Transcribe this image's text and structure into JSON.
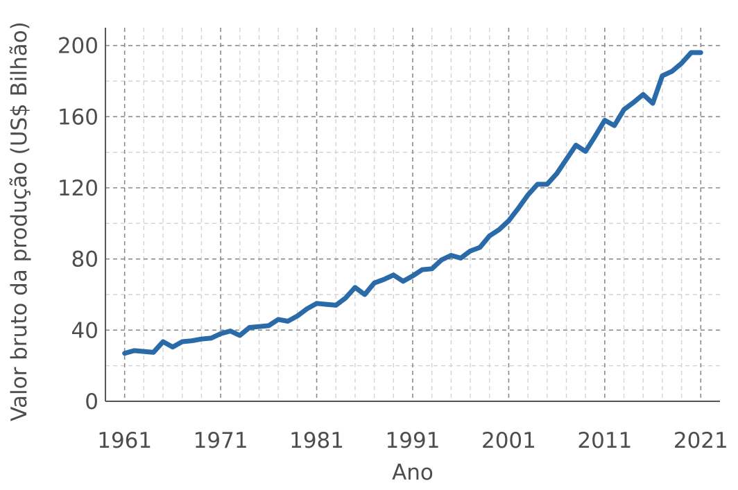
{
  "chart_data": {
    "type": "line",
    "xlabel": "Ano",
    "ylabel": "Valor bruto da produção (US$ Bilhão)",
    "xlim": [
      1959,
      2023
    ],
    "ylim": [
      0,
      210
    ],
    "x_ticks": [
      1961,
      1971,
      1981,
      1991,
      2001,
      2011,
      2021
    ],
    "y_ticks": [
      0,
      40,
      80,
      120,
      160,
      200
    ],
    "grid": true,
    "legend": "none",
    "series": [
      {
        "color": "#2a6aa8",
        "x": [
          1961,
          1962,
          1963,
          1964,
          1965,
          1966,
          1967,
          1968,
          1969,
          1970,
          1971,
          1972,
          1973,
          1974,
          1975,
          1976,
          1977,
          1978,
          1979,
          1980,
          1981,
          1982,
          1983,
          1984,
          1985,
          1986,
          1987,
          1988,
          1989,
          1990,
          1991,
          1992,
          1993,
          1994,
          1995,
          1996,
          1997,
          1998,
          1999,
          2000,
          2001,
          2002,
          2003,
          2004,
          2005,
          2006,
          2007,
          2008,
          2009,
          2010,
          2011,
          2012,
          2013,
          2014,
          2015,
          2016,
          2017,
          2018,
          2019,
          2020,
          2021
        ],
        "values": [
          27,
          28.5,
          28,
          27.5,
          33.5,
          30.5,
          33.5,
          34,
          35,
          35.5,
          38,
          39.5,
          37,
          41.5,
          42,
          42.5,
          46,
          45,
          48,
          52,
          55,
          54.5,
          54,
          58,
          64,
          60,
          66.5,
          68.5,
          71,
          67.5,
          70.5,
          74,
          74.5,
          79.5,
          82,
          80.5,
          84.5,
          86.5,
          93,
          96.5,
          101.5,
          108.5,
          116,
          122,
          122,
          128,
          136,
          144,
          140.5,
          149,
          158,
          155,
          164,
          168,
          172.5,
          167.5,
          183,
          185.5,
          190,
          196,
          196
        ]
      }
    ]
  }
}
